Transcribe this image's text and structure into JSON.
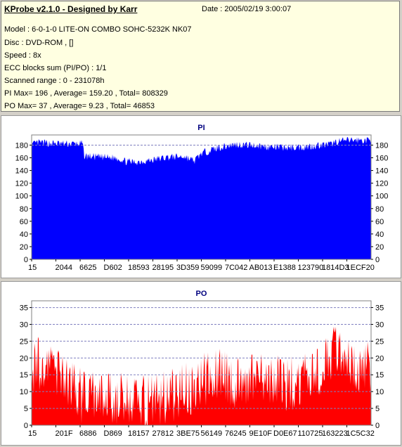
{
  "info": {
    "title": "KProbe v2.1.0 - Designed by Karr",
    "date": "Date : 2005/02/19 3:00:07",
    "lines": [
      "Model : 6-0-1-0 LITE-ON COMBO SOHC-5232K NK07",
      "Disc : DVD-ROM ,  []",
      "Speed : 8x",
      "ECC blocks sum (PI/PO) : 1/1",
      "Scanned range : 0 - 231078h",
      "PI Max= 196 , Average= 159.20 , Total= 808329",
      "PO Max= 37 , Average= 9.23 , Total= 46853"
    ]
  },
  "colors": {
    "pi": "#0000ff",
    "po": "#ff0000",
    "grid": "#8080c0",
    "title": "#00007f"
  },
  "chart_data": [
    {
      "type": "area",
      "title": "PI",
      "ylim": [
        0,
        196
      ],
      "yticks": [
        0,
        20,
        40,
        60,
        80,
        100,
        120,
        140,
        160,
        180
      ],
      "grid_dashed": [
        180
      ],
      "xtick_labels": [
        "15",
        "2044",
        "6625",
        "D602",
        "18593",
        "28195",
        "3D359",
        "59099",
        "7C042",
        "AB013",
        "E1388",
        "123790",
        "1814D3",
        "1ECF20"
      ],
      "x": [
        0,
        0.02,
        0.05,
        0.1,
        0.15,
        0.155,
        0.2,
        0.25,
        0.28,
        0.3,
        0.35,
        0.4,
        0.45,
        0.48,
        0.5,
        0.55,
        0.6,
        0.65,
        0.7,
        0.75,
        0.8,
        0.85,
        0.88,
        0.9,
        0.95,
        1.0
      ],
      "values": [
        180,
        184,
        183,
        182,
        182,
        163,
        161,
        160,
        154,
        153,
        156,
        161,
        162,
        155,
        167,
        176,
        181,
        180,
        177,
        176,
        177,
        180,
        181,
        186,
        188,
        187
      ]
    },
    {
      "type": "area",
      "title": "PO",
      "ylim": [
        0,
        37
      ],
      "yticks": [
        0,
        5,
        10,
        15,
        20,
        25,
        30,
        35
      ],
      "grid_dashed": [
        5,
        10,
        15,
        20,
        25,
        30,
        35
      ],
      "xtick_labels": [
        "15",
        "201F",
        "6886",
        "D869",
        "18157",
        "27812",
        "3BE75",
        "56149",
        "76245",
        "9E10F",
        "D0E67",
        "110725",
        "163223",
        "1C5C32"
      ],
      "x": [
        0,
        0.03,
        0.07,
        0.12,
        0.15,
        0.2,
        0.25,
        0.3,
        0.35,
        0.4,
        0.45,
        0.5,
        0.55,
        0.6,
        0.65,
        0.7,
        0.75,
        0.8,
        0.85,
        0.88,
        0.9,
        0.92,
        0.95,
        1.0
      ],
      "values": [
        17,
        19,
        16,
        13,
        8,
        8,
        8,
        7,
        7,
        8,
        10,
        13,
        15,
        13,
        14,
        13,
        12,
        13,
        15,
        20,
        22,
        19,
        18,
        17
      ]
    }
  ]
}
